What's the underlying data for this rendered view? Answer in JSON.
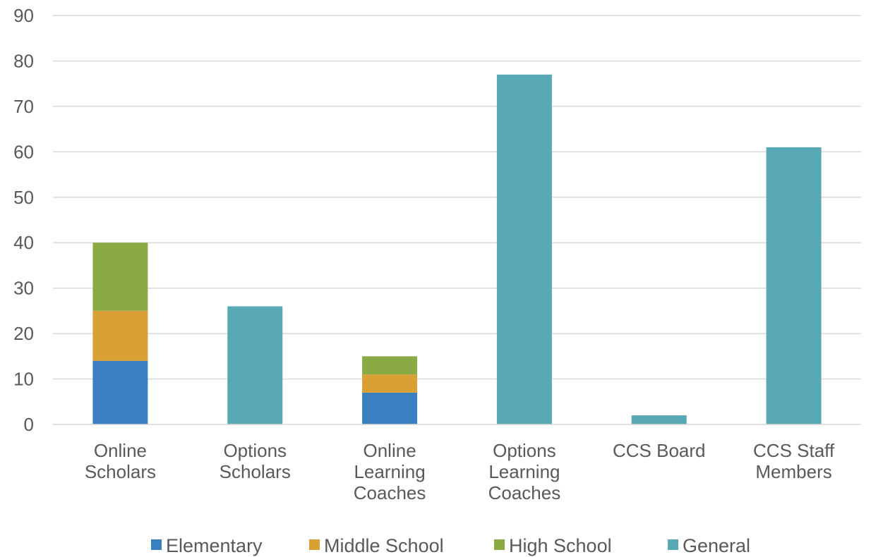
{
  "chart_data": {
    "type": "bar",
    "stacked": true,
    "title": "",
    "xlabel": "",
    "ylabel": "",
    "ylim": [
      0,
      90
    ],
    "yticks": [
      0,
      10,
      20,
      30,
      40,
      50,
      60,
      70,
      80,
      90
    ],
    "grid": true,
    "legend_position": "bottom",
    "categories": [
      [
        "Online",
        "Scholars"
      ],
      [
        "Options",
        "Scholars"
      ],
      [
        "Online",
        "Learning",
        "Coaches"
      ],
      [
        "Options",
        "Learning",
        "Coaches"
      ],
      [
        "CCS Board"
      ],
      [
        "CCS Staff",
        "Members"
      ]
    ],
    "series": [
      {
        "name": "Elementary",
        "color": "#3a7fbf",
        "values": [
          14,
          0,
          7,
          0,
          0,
          0
        ]
      },
      {
        "name": "Middle School",
        "color": "#d9a036",
        "values": [
          11,
          0,
          4,
          0,
          0,
          0
        ]
      },
      {
        "name": "High School",
        "color": "#8aab44",
        "values": [
          15,
          0,
          4,
          0,
          0,
          0
        ]
      },
      {
        "name": "General",
        "color": "#59a8b6",
        "values": [
          0,
          26,
          0,
          77,
          2,
          61
        ]
      }
    ]
  }
}
